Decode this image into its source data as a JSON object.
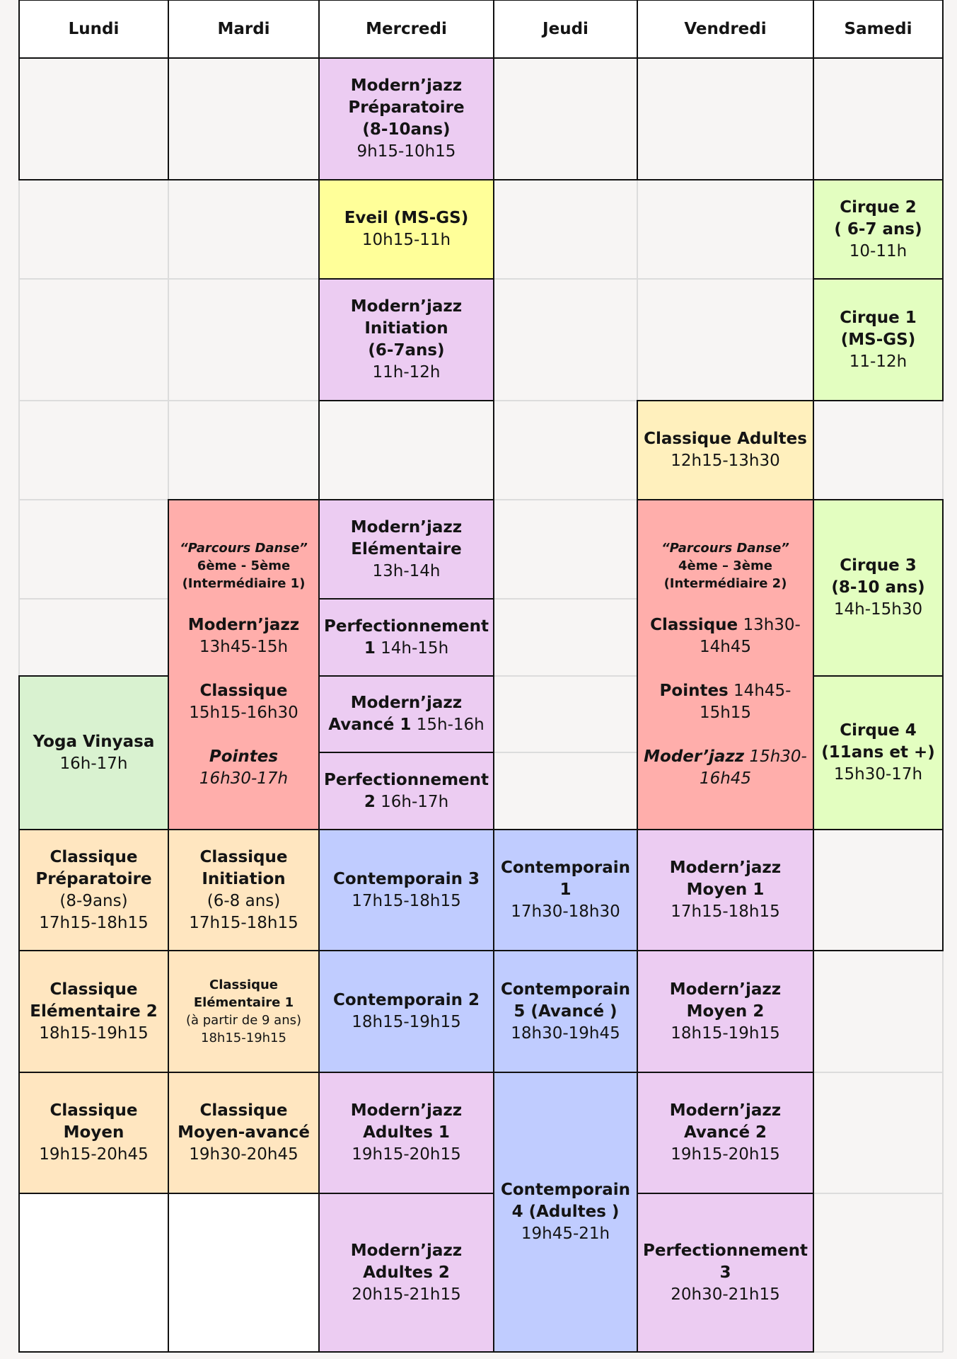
{
  "days": [
    "Lundi",
    "Mardi",
    "Mercredi",
    "Jeudi",
    "Vendredi",
    "Samedi"
  ],
  "colors": {
    "modern_jazz": "#ecccf2",
    "eveil": "#ffff99",
    "cirque": "#e3fec0",
    "classique_adultes": "#fff0bd",
    "parcours": "#ffaeab",
    "yoga": "#d9f2d0",
    "classique": "#ffe6c0",
    "contemporain": "#c0ccff",
    "white": "#ffffff"
  },
  "courses": {
    "mj_preparatoire": {
      "title": [
        "Modern’jazz",
        "Préparatoire",
        "(8-10ans)"
      ],
      "time": "9h15-10h15"
    },
    "eveil": {
      "title": [
        "Eveil (MS-GS)"
      ],
      "time": "10h15-11h"
    },
    "mj_initiation": {
      "title": [
        "Modern’jazz",
        "Initiation",
        "(6-7ans)"
      ],
      "time": "11h-12h"
    },
    "mj_elementaire": {
      "title": [
        "Modern’jazz",
        "Elémentaire"
      ],
      "time": "13h-14h"
    },
    "perf1": {
      "title": "Perfectionnement",
      "num": "1",
      "time": "14h-15h"
    },
    "mj_avance1": {
      "title": "Modern’jazz",
      "num": "Avancé 1",
      "time": "15h-16h"
    },
    "perf2": {
      "title": "Perfectionnement",
      "num": "2",
      "time": "16h-17h"
    },
    "contemp3": {
      "title": [
        "Contemporain 3"
      ],
      "time": "17h15-18h15"
    },
    "contemp2": {
      "title": [
        "Contemporain 2"
      ],
      "time": "18h15-19h15"
    },
    "mj_adultes1": {
      "title": [
        "Modern’jazz",
        "Adultes 1"
      ],
      "time": "19h15-20h15"
    },
    "mj_adultes2": {
      "title": [
        "Modern’jazz",
        "Adultes 2"
      ],
      "time": "20h15-21h15"
    },
    "contemp1": {
      "title": [
        "Contemporain",
        "1"
      ],
      "time": "17h30-18h30"
    },
    "contemp5": {
      "title": [
        "Contemporain",
        "5 (Avancé )"
      ],
      "time": "18h30-19h45"
    },
    "contemp4": {
      "title": [
        "Contemporain",
        "4 (Adultes )"
      ],
      "time": "19h45-21h"
    },
    "classique_adultes": {
      "title": [
        "Classique Adultes"
      ],
      "time": "12h15-13h30"
    },
    "mj_moyen1": {
      "title": [
        "Modern’jazz",
        "Moyen 1"
      ],
      "time": "17h15-18h15"
    },
    "mj_moyen2": {
      "title": [
        "Modern’jazz",
        "Moyen 2"
      ],
      "time": "18h15-19h15"
    },
    "mj_avance2": {
      "title": [
        "Modern’jazz",
        "Avancé 2"
      ],
      "time": "19h15-20h15"
    },
    "perf3": {
      "title": [
        "Perfectionnement",
        "3"
      ],
      "time": "20h30-21h15"
    },
    "cirque2": {
      "title": [
        "Cirque 2",
        "( 6-7 ans)"
      ],
      "time": "10-11h"
    },
    "cirque1": {
      "title": [
        "Cirque 1",
        "(MS-GS)"
      ],
      "time": "11-12h"
    },
    "cirque3": {
      "title": [
        "Cirque 3",
        "(8-10 ans)"
      ],
      "time": "14h-15h30"
    },
    "cirque4": {
      "title": [
        "Cirque 4",
        "(11ans et +)"
      ],
      "time": "15h30-17h"
    },
    "yoga": {
      "title": [
        "Yoga Vinyasa"
      ],
      "time": "16h-17h"
    },
    "cl_preparatoire": {
      "title": [
        "Classique",
        "Préparatoire"
      ],
      "note": "(8-9ans)",
      "time": "17h15-18h15"
    },
    "cl_elementaire2": {
      "title": [
        "Classique",
        "Elémentaire 2"
      ],
      "time": "18h15-19h15"
    },
    "cl_moyen": {
      "title": [
        "Classique",
        "Moyen"
      ],
      "time": "19h15-20h45"
    },
    "cl_initiation": {
      "title": [
        "Classique",
        "Initiation"
      ],
      "note": "(6-8 ans)",
      "time": "17h15-18h15"
    },
    "cl_elementaire1": {
      "title": [
        "Classique",
        "Elémentaire 1"
      ],
      "note": "(à partir de 9 ans)",
      "time": "18h15-19h15"
    },
    "cl_moyen_avance": {
      "title": [
        "Classique",
        "Moyen-avancé"
      ],
      "time": "19h30-20h45"
    }
  },
  "parcours_mardi": {
    "quote": "“Parcours Danse”",
    "level": "6ème - 5ème",
    "group": "(Intermédiaire 1)",
    "l1_title": "Modern’jazz",
    "l1_time": "13h45-15h",
    "l2_title": "Classique",
    "l2_time": "15h15-16h30",
    "l3_title": "Pointes",
    "l3_time": "16h30-17h"
  },
  "parcours_vendredi": {
    "quote": "“Parcours Danse”",
    "level": "4ème – 3ème",
    "group": "(Intermédiaire 2)",
    "l1_title": "Classique",
    "l1_time_a": "13h30-",
    "l1_time_b": "14h45",
    "l2_title": "Pointes",
    "l2_time_a": "14h45-",
    "l2_time_b": "15h15",
    "l3_title": "Moder’jazz",
    "l3_time_a": "15h30-",
    "l3_time_b": "16h45"
  }
}
